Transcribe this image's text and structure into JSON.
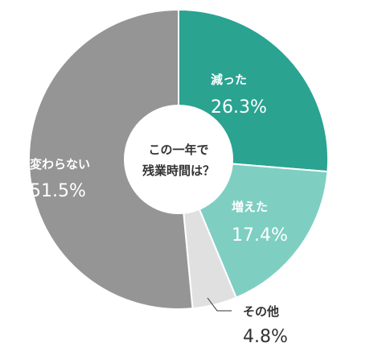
{
  "chart_data": {
    "type": "pie",
    "center_title_lines": [
      "この一年で",
      "残業時間は？"
    ],
    "slices": [
      {
        "label": "減った",
        "value_text": "26.3%",
        "value": 26.3,
        "color": "#2aa391"
      },
      {
        "label": "増えた",
        "value_text": "17.4%",
        "value": 17.4,
        "color": "#7ecfc2"
      },
      {
        "label": "その他",
        "value_text": "4.8%",
        "value": 4.8,
        "color": "#e0e0e0"
      },
      {
        "label": "変わらない",
        "value_text": "51.5%",
        "value": 51.5,
        "color": "#959595"
      }
    ],
    "label_colors": {
      "inside": "#ffffff",
      "outside": "#333333",
      "center": "#333333"
    }
  }
}
